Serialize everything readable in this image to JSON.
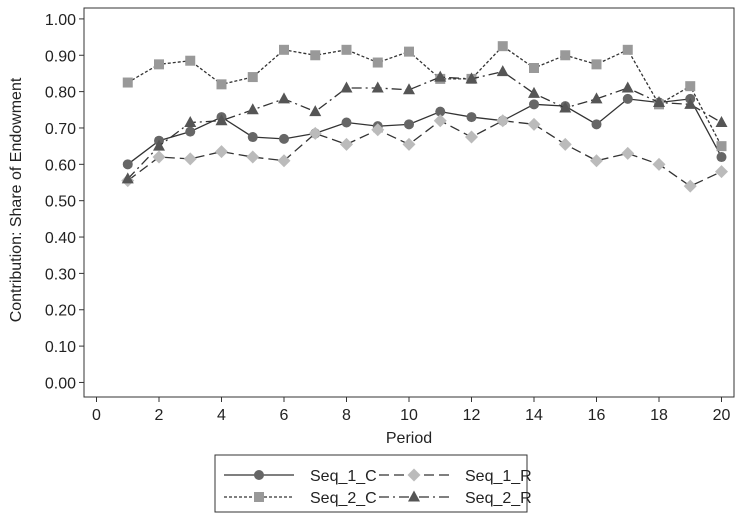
{
  "chart_data": {
    "type": "line",
    "x_label": "Period",
    "y_label": "Contribution: Share of Endowment",
    "x": [
      1,
      2,
      3,
      4,
      5,
      6,
      7,
      8,
      9,
      10,
      11,
      12,
      13,
      14,
      15,
      16,
      17,
      18,
      19,
      20
    ],
    "xlim": [
      -0.4,
      20.4
    ],
    "xticks": [
      0,
      2,
      4,
      6,
      8,
      10,
      12,
      14,
      16,
      18,
      20
    ],
    "ylim": [
      -0.04,
      1.03
    ],
    "yticks": [
      {
        "value": 0,
        "label": "0.00"
      },
      {
        "value": 0.1,
        "label": "0.10"
      },
      {
        "value": 0.2,
        "label": "0.20"
      },
      {
        "value": 0.3,
        "label": "0.30"
      },
      {
        "value": 0.4,
        "label": "0.40"
      },
      {
        "value": 0.5,
        "label": "0.50"
      },
      {
        "value": 0.6,
        "label": "0.60"
      },
      {
        "value": 0.7,
        "label": "0.70"
      },
      {
        "value": 0.8,
        "label": "0.80"
      },
      {
        "value": 0.9,
        "label": "0.90"
      },
      {
        "value": 1,
        "label": "1.00"
      }
    ],
    "grid": false,
    "legend": "bottom",
    "series": [
      {
        "name": "Seq_1_C",
        "color": "#666666",
        "line_color": "#333333",
        "marker": "circle",
        "dash": "solid",
        "values": [
          0.6,
          0.665,
          0.69,
          0.73,
          0.675,
          0.67,
          0.685,
          0.715,
          0.705,
          0.71,
          0.745,
          0.73,
          0.72,
          0.765,
          0.76,
          0.71,
          0.78,
          0.77,
          0.78,
          0.62
        ]
      },
      {
        "name": "Seq_1_R",
        "color": "#bbbbbb",
        "line_color": "#333333",
        "marker": "diamond",
        "dash": "dashed",
        "values": [
          0.555,
          0.62,
          0.615,
          0.635,
          0.62,
          0.61,
          0.685,
          0.655,
          0.695,
          0.655,
          0.72,
          0.675,
          0.72,
          0.71,
          0.655,
          0.61,
          0.63,
          0.6,
          0.54,
          0.58
        ]
      },
      {
        "name": "Seq_2_C",
        "color": "#999999",
        "line_color": "#333333",
        "marker": "square",
        "dash": "dotted",
        "values": [
          0.825,
          0.875,
          0.885,
          0.82,
          0.84,
          0.915,
          0.9,
          0.915,
          0.88,
          0.91,
          0.835,
          0.835,
          0.925,
          0.865,
          0.9,
          0.875,
          0.915,
          0.765,
          0.815,
          0.65
        ]
      },
      {
        "name": "Seq_2_R",
        "color": "#555555",
        "line_color": "#333333",
        "marker": "triangle",
        "dash": "dashdot",
        "values": [
          0.56,
          0.65,
          0.715,
          0.72,
          0.75,
          0.78,
          0.745,
          0.81,
          0.81,
          0.805,
          0.84,
          0.835,
          0.855,
          0.795,
          0.755,
          0.78,
          0.81,
          0.77,
          0.765,
          0.715
        ]
      }
    ]
  }
}
